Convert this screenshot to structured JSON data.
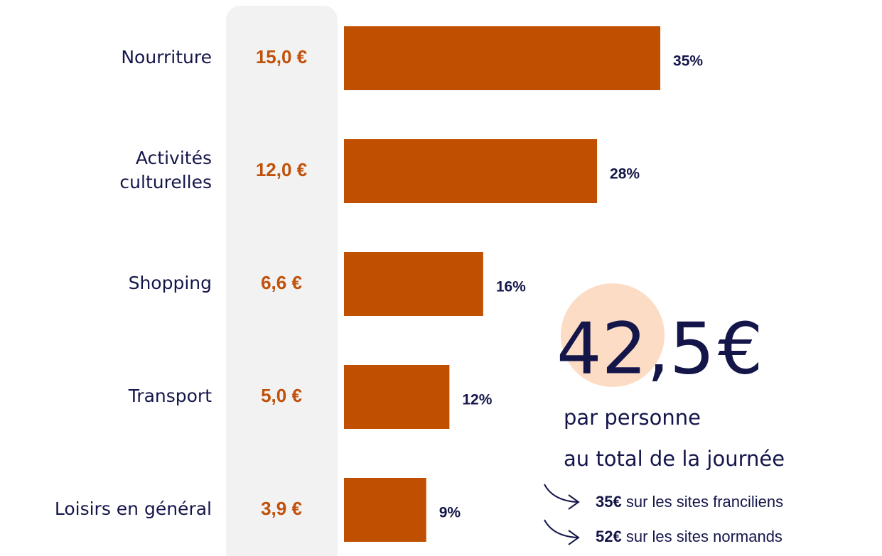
{
  "chart_data": {
    "type": "bar",
    "categories": [
      [
        "Nourriture"
      ],
      [
        "Activités",
        "culturelles"
      ],
      [
        "Shopping"
      ],
      [
        "Transport"
      ],
      [
        "Loisirs en général"
      ]
    ],
    "values": [
      15.0,
      12.0,
      6.6,
      5.0,
      3.9
    ],
    "value_labels": [
      "15,0 €",
      "12,0 €",
      "6,6 €",
      "5,0 €",
      "3,9 €"
    ],
    "share_labels": [
      "35%",
      "28%",
      "16%",
      "12%",
      "9%"
    ],
    "color": "#c14f00",
    "total": {
      "value": "42,5",
      "unit": "€"
    },
    "total_caption": [
      "par personne",
      "au total de la journée"
    ],
    "notes": [
      {
        "bold": "35€",
        "text": "sur les sites franciliens"
      },
      {
        "bold": "52€",
        "text": "sur les sites normands"
      }
    ]
  }
}
